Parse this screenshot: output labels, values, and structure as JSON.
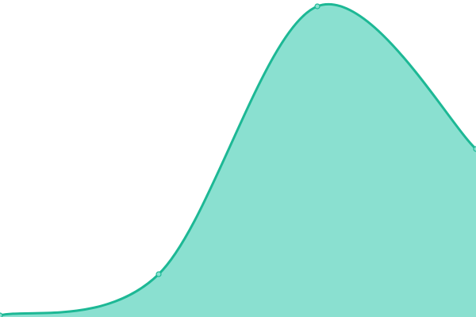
{
  "chart_data": {
    "type": "area",
    "x": [
      0,
      1,
      2,
      3
    ],
    "values": [
      0.5,
      13.5,
      98,
      53
    ],
    "ylim": [
      0,
      100
    ],
    "xlim": [
      0,
      3
    ],
    "grid": false,
    "axes_visible": false,
    "curve": "smooth",
    "colors": {
      "line": "#1db895",
      "fill": "#8ae0d0",
      "marker_fill": "#8ae0d0"
    }
  }
}
